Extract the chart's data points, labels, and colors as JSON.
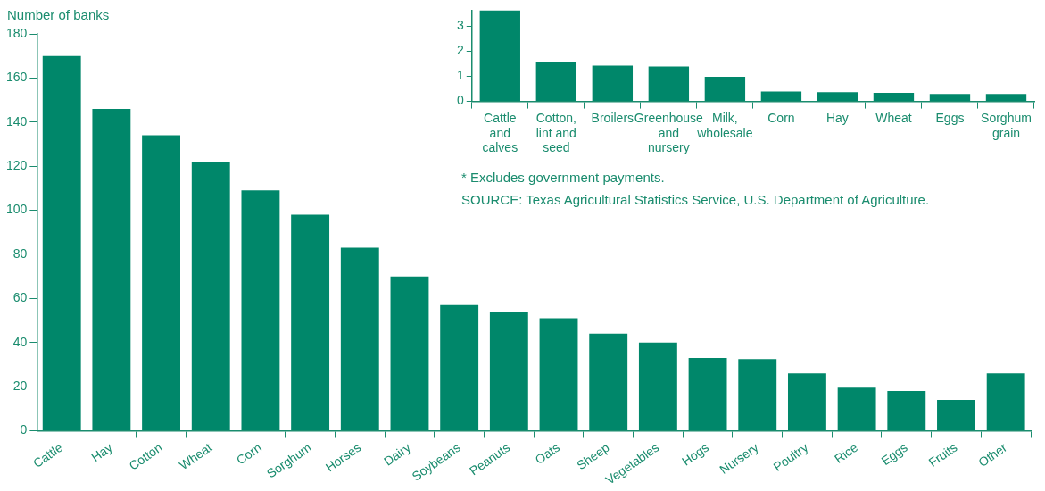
{
  "chart_data": [
    {
      "type": "bar",
      "ylabel": "Number of banks",
      "categories": [
        "Cattle",
        "Hay",
        "Cotton",
        "Wheat",
        "Corn",
        "Sorghum",
        "Horses",
        "Dairy",
        "Soybeans",
        "Peanuts",
        "Oats",
        "Sheep",
        "Vegetables",
        "Hogs",
        "Nursery",
        "Poultry",
        "Rice",
        "Eggs",
        "Fruits",
        "Other"
      ],
      "values": [
        170,
        146,
        134,
        122,
        109,
        98,
        83,
        70,
        57,
        54,
        51,
        44,
        40,
        33,
        32.5,
        26,
        19.5,
        18,
        14,
        26
      ],
      "color": "#00876a",
      "ylim": [
        0,
        180
      ],
      "yticks": [
        0,
        20,
        40,
        60,
        80,
        100,
        120,
        140,
        160,
        180
      ]
    },
    {
      "type": "bar",
      "categories": [
        "Cattle and calves",
        "Cotton, lint and seed",
        "Broilers",
        "Greenhouse and nursery",
        "Milk, wholesale",
        "Corn",
        "Hay",
        "Wheat",
        "Eggs",
        "Sorghum grain"
      ],
      "values": [
        3.65,
        1.57,
        1.43,
        1.4,
        0.99,
        0.4,
        0.37,
        0.34,
        0.3,
        0.3
      ],
      "color": "#00876a",
      "ylim": [
        0,
        3.65
      ],
      "yticks": [
        0,
        1,
        2,
        3
      ],
      "annotations": [
        "* Excludes government payments.",
        "SOURCE: Texas Agricultural Statistics Service, U.S. Department of Agriculture."
      ]
    }
  ]
}
